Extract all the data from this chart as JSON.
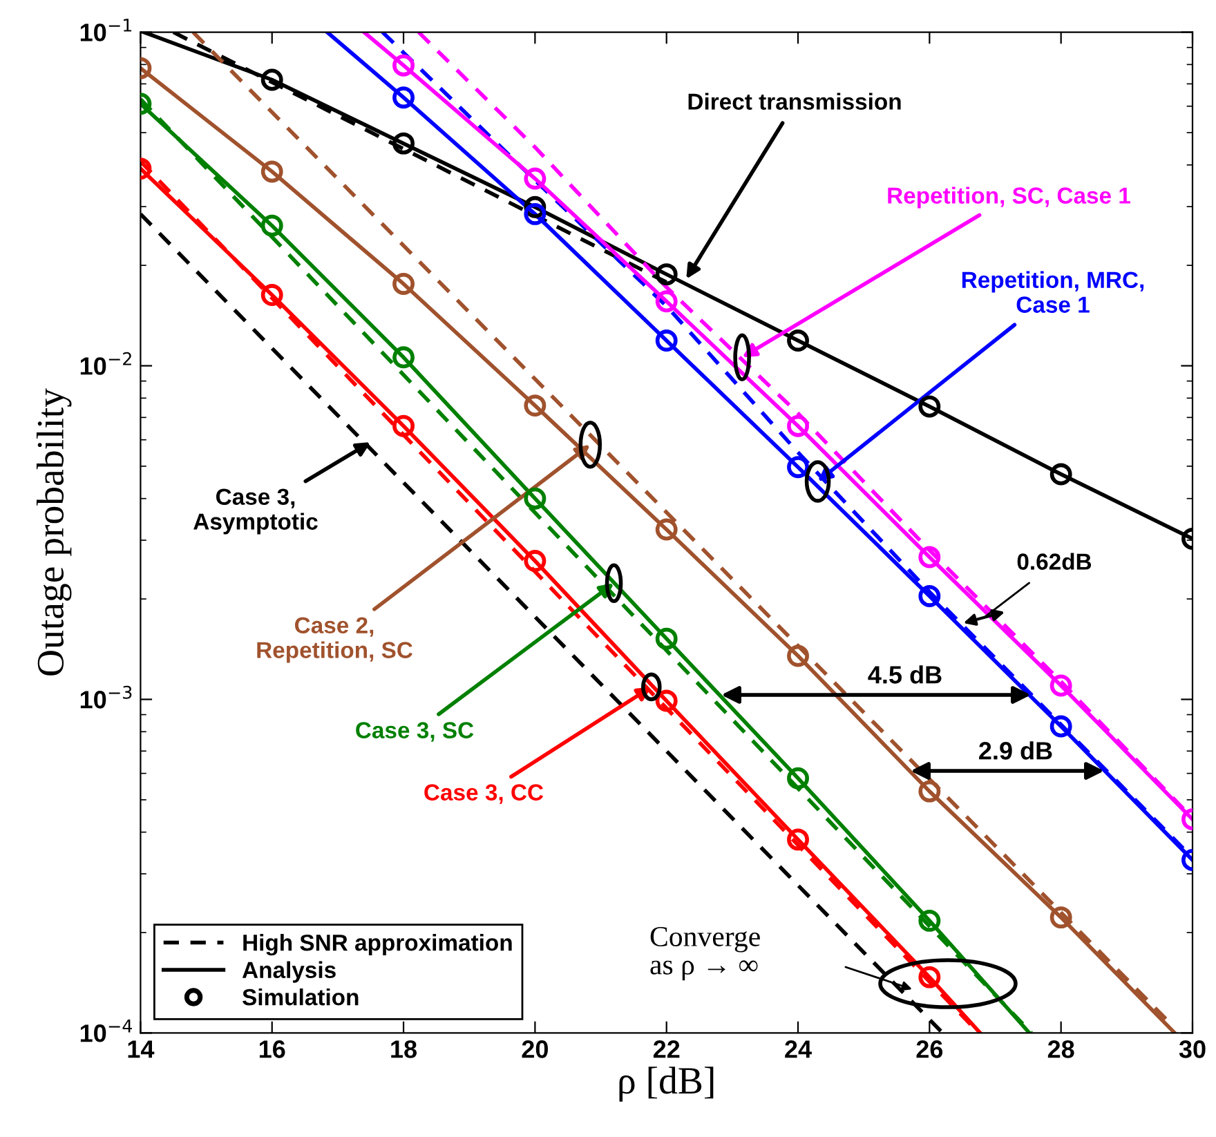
{
  "chart_data": {
    "type": "line",
    "xlabel": "ρ [dB]",
    "ylabel": "Outage probability",
    "log": "y",
    "xlim": [
      14,
      30
    ],
    "xticks": [
      14,
      16,
      18,
      20,
      22,
      24,
      26,
      28,
      30
    ],
    "ylim": [
      0.0001,
      0.1
    ],
    "yticks": [
      {
        "value": 0.0001,
        "label": "10$^{−4}$"
      },
      {
        "value": 0.001,
        "label": "10$^{−3}$"
      },
      {
        "value": 0.01,
        "label": "10$^{−2}$"
      },
      {
        "value": 0.1,
        "label": "10$^{−1}$"
      }
    ],
    "grid": false,
    "legend": "bottom left",
    "series": [
      {
        "name": "High SNR approximation",
        "type": "line",
        "line_style": "dashed",
        "marker": "none",
        "color": "#000000",
        "x": [
          14.5,
          22
        ],
        "values": [
          0.1,
          0.0178
        ]
      },
      {
        "name": "Analysis",
        "type": "line",
        "line_style": "solid",
        "marker": "none",
        "color": "#000000",
        "x": [
          14.05,
          16,
          18,
          20,
          22,
          24,
          26,
          28,
          30
        ],
        "values": [
          0.1,
          0.072,
          0.0464,
          0.0299,
          0.0188,
          0.0119,
          0.00755,
          0.00473,
          0.00303
        ]
      },
      {
        "name": "Simulation",
        "type": "scatter",
        "marker": "circle",
        "color": "#000000",
        "x": [
          16,
          18,
          20,
          22,
          24,
          26,
          28,
          30
        ],
        "values": [
          0.072,
          0.0464,
          0.0299,
          0.0188,
          0.0119,
          0.00755,
          0.00473,
          0.00303
        ]
      },
      {
        "line_style": "dashed",
        "marker": "none",
        "color": "#000000",
        "x": [
          14,
          26.2
        ],
        "values": [
          0.0285,
          0.0001
        ]
      },
      {
        "line_style": "dashed",
        "marker": "none",
        "color": "#ff0000",
        "x": [
          14,
          26.75
        ],
        "values": [
          0.041,
          0.0001
        ]
      },
      {
        "line_style": "solid",
        "marker": "none",
        "color": "#ff0000",
        "x": [
          14,
          16,
          18,
          20,
          22,
          24,
          26,
          26.77
        ],
        "values": [
          0.039,
          0.0163,
          0.0066,
          0.0026,
          0.00099,
          0.00038,
          0.000147,
          0.0001
        ]
      },
      {
        "type": "scatter",
        "marker": "circle",
        "color": "#ff0000",
        "x": [
          14,
          16,
          18,
          20,
          22,
          24,
          26
        ],
        "values": [
          0.039,
          0.0163,
          0.0066,
          0.0026,
          0.00099,
          0.00038,
          0.000147
        ]
      },
      {
        "line_style": "dashed",
        "marker": "none",
        "color": "#008000",
        "x": [
          14,
          27.55
        ],
        "values": [
          0.063,
          0.0001
        ]
      },
      {
        "line_style": "solid",
        "marker": "none",
        "color": "#008000",
        "x": [
          14,
          16,
          18,
          20,
          22,
          24,
          26,
          27.52
        ],
        "values": [
          0.061,
          0.0263,
          0.0106,
          0.004,
          0.00152,
          0.00058,
          0.000217,
          0.0001
        ]
      },
      {
        "type": "scatter",
        "marker": "circle",
        "color": "#008000",
        "x": [
          14,
          16,
          18,
          20,
          22,
          24,
          26
        ],
        "values": [
          0.061,
          0.0263,
          0.0106,
          0.004,
          0.00152,
          0.00058,
          0.000217
        ]
      },
      {
        "line_style": "dashed",
        "marker": "none",
        "color": "#a0522d",
        "x": [
          14.8,
          29.7
        ],
        "values": [
          0.1,
          0.000105
        ]
      },
      {
        "line_style": "solid",
        "marker": "none",
        "color": "#a0522d",
        "x": [
          14,
          16,
          18,
          20,
          22,
          24,
          26,
          28,
          29.73
        ],
        "values": [
          0.078,
          0.0382,
          0.0176,
          0.0076,
          0.00323,
          0.00135,
          0.00053,
          0.000222,
          0.0001
        ]
      },
      {
        "type": "scatter",
        "marker": "circle",
        "color": "#a0522d",
        "x": [
          14,
          16,
          18,
          20,
          22,
          24,
          26,
          28
        ],
        "values": [
          0.078,
          0.0382,
          0.0176,
          0.0076,
          0.00323,
          0.00135,
          0.00053,
          0.000222
        ]
      },
      {
        "line_style": "dashed",
        "marker": "none",
        "color": "#0000ff",
        "x": [
          17.68,
          20,
          22,
          24,
          26,
          28,
          30
        ],
        "values": [
          0.1,
          0.036,
          0.0151,
          0.0055,
          0.0021,
          0.00084,
          0.000335
        ]
      },
      {
        "line_style": "solid",
        "marker": "none",
        "color": "#0000ff",
        "x": [
          16.84,
          18,
          20,
          22,
          24,
          26,
          28,
          30
        ],
        "values": [
          0.1,
          0.0637,
          0.0285,
          0.0119,
          0.00497,
          0.00204,
          0.00083,
          0.00033
        ]
      },
      {
        "type": "scatter",
        "marker": "circle",
        "color": "#0000ff",
        "x": [
          18,
          20,
          22,
          24,
          26,
          28,
          30
        ],
        "values": [
          0.0637,
          0.0285,
          0.0119,
          0.00497,
          0.00204,
          0.00083,
          0.00033
        ]
      },
      {
        "line_style": "dashed",
        "marker": "none",
        "color": "#ff00ff",
        "x": [
          18.23,
          20,
          22,
          24,
          26,
          28,
          30
        ],
        "values": [
          0.1,
          0.0452,
          0.0172,
          0.0072,
          0.0028,
          0.00113,
          0.00044
        ]
      },
      {
        "line_style": "solid",
        "marker": "none",
        "color": "#ff00ff",
        "x": [
          17.4,
          18,
          20,
          22,
          24,
          26,
          28,
          30
        ],
        "values": [
          0.1,
          0.0795,
          0.0364,
          0.0156,
          0.0066,
          0.00267,
          0.0011,
          0.000437
        ]
      },
      {
        "type": "scatter",
        "marker": "circle",
        "color": "#ff00ff",
        "x": [
          18,
          20,
          22,
          24,
          26,
          28,
          30
        ],
        "values": [
          0.0795,
          0.0364,
          0.0156,
          0.0066,
          0.00267,
          0.0011,
          0.000437
        ]
      }
    ],
    "annotations": [
      {
        "text": "Direct transmission",
        "x": 22.3,
        "y": 0.0182
      },
      {
        "text": "Repetition, SC, Case 1",
        "x": 23.15,
        "y": 0.0106
      },
      {
        "text": "Repetition, MRC,\nCase 1",
        "x": 24.3,
        "y": 0.0045
      },
      {
        "text": "Case 2,\nRepetition, SC",
        "x": 20.84,
        "y": 0.0058
      },
      {
        "text": "Case 3, SC",
        "x": 21.2,
        "y": 0.00223
      },
      {
        "text": "Case 3, CC",
        "x": 21.77,
        "y": 0.00109
      },
      {
        "text": "Case 3,\nAsymptotic",
        "x": 17.5,
        "y": 0.0059
      },
      {
        "text": "0.62dB",
        "x": 26.83,
        "y": 0.00176
      },
      "4.5 dB",
      "2.9 dB",
      "Converge\nas ρ → ∞"
    ]
  }
}
